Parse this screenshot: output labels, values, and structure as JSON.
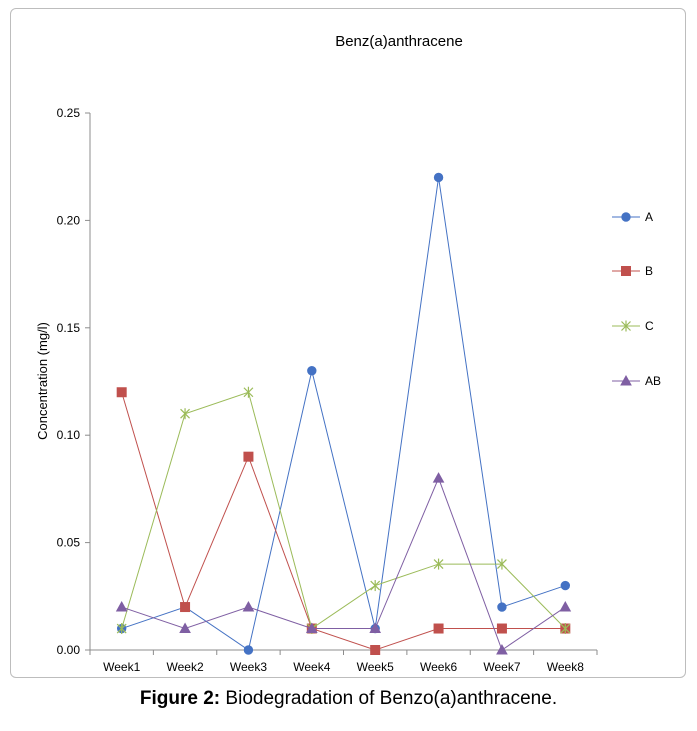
{
  "chart_data": {
    "type": "line",
    "title": "Benz(a)anthracene",
    "xlabel": "",
    "ylabel": "Concentration (mg/l)",
    "categories": [
      "Week1",
      "Week2",
      "Week3",
      "Week4",
      "Week5",
      "Week6",
      "Week7",
      "Week8"
    ],
    "ylim": [
      0,
      0.25
    ],
    "yticks": [
      "0.00",
      "0.05",
      "0.10",
      "0.15",
      "0.20",
      "0.25"
    ],
    "ytick_values": [
      0,
      0.05,
      0.1,
      0.15,
      0.2,
      0.25
    ],
    "grid": false,
    "legend_position": "right",
    "series": [
      {
        "name": "A",
        "values": [
          0.01,
          0.02,
          0.0,
          0.13,
          0.01,
          0.22,
          0.02,
          0.03
        ],
        "color": "#4472c4",
        "marker": "circle"
      },
      {
        "name": "B",
        "values": [
          0.12,
          0.02,
          0.09,
          0.01,
          0.0,
          0.01,
          0.01,
          0.01
        ],
        "color": "#c0504d",
        "marker": "square"
      },
      {
        "name": "C",
        "values": [
          0.01,
          0.11,
          0.12,
          0.01,
          0.03,
          0.04,
          0.04,
          0.01
        ],
        "color": "#9bbb59",
        "marker": "star"
      },
      {
        "name": "AB",
        "values": [
          0.02,
          0.01,
          0.02,
          0.01,
          0.01,
          0.08,
          0.0,
          0.02
        ],
        "color": "#7f5fa3",
        "marker": "triangle"
      }
    ]
  },
  "caption": {
    "label": "Figure 2:",
    "text": " Biodegradation of Benzo(a)anthracene."
  }
}
